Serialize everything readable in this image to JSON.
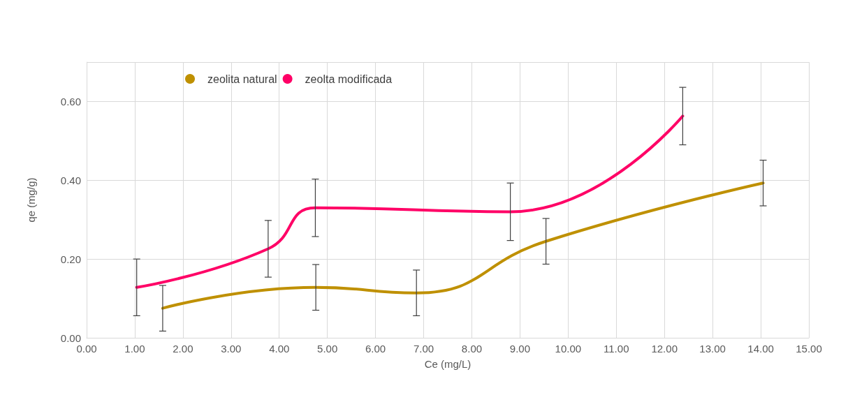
{
  "chart_data": {
    "type": "line",
    "xlabel": "Ce (mg/L)",
    "ylabel": "qe (mg/g)",
    "xlim": [
      0,
      15
    ],
    "xticks": [
      {
        "value": 0,
        "label": "0.00"
      },
      {
        "value": 1,
        "label": "1.00"
      },
      {
        "value": 2,
        "label": "2.00"
      },
      {
        "value": 3,
        "label": "3.00"
      },
      {
        "value": 4,
        "label": "4.00"
      },
      {
        "value": 5,
        "label": "5.00"
      },
      {
        "value": 6,
        "label": "6.00"
      },
      {
        "value": 7,
        "label": "7.00"
      },
      {
        "value": 8,
        "label": "8.00"
      },
      {
        "value": 9,
        "label": "9.00"
      },
      {
        "value": 10,
        "label": "10.00"
      },
      {
        "value": 11,
        "label": "11.00"
      },
      {
        "value": 12,
        "label": "12.00"
      },
      {
        "value": 13,
        "label": "13.00"
      },
      {
        "value": 14,
        "label": "14.00"
      },
      {
        "value": 15,
        "label": "15.00"
      }
    ],
    "ylim": [
      0,
      0.7
    ],
    "yticks": [
      {
        "value": 0,
        "label": "0.00"
      },
      {
        "value": 0.2,
        "label": "0.20"
      },
      {
        "value": 0.4,
        "label": "0.40"
      },
      {
        "value": 0.6,
        "label": "0.60"
      },
      {
        "value": 0.7,
        "label": null
      }
    ],
    "grid": true,
    "legend": "top left",
    "marker": "none",
    "line_style": "solid",
    "series": [
      {
        "name": "zeolita natural",
        "color": "#bf9000",
        "x": [
          1.58,
          4.76,
          6.85,
          9.54,
          14.05
        ],
        "values": [
          0.075,
          0.128,
          0.114,
          0.245,
          0.393
        ],
        "errors": [
          0.058,
          0.058,
          0.058,
          0.058,
          0.058
        ]
      },
      {
        "name": "zeolta modificada",
        "color": "#ff0066",
        "x": [
          1.04,
          3.77,
          4.75,
          8.8,
          12.38
        ],
        "values": [
          0.128,
          0.226,
          0.33,
          0.32,
          0.563
        ],
        "errors": [
          0.072,
          0.072,
          0.073,
          0.073,
          0.073
        ]
      }
    ]
  }
}
